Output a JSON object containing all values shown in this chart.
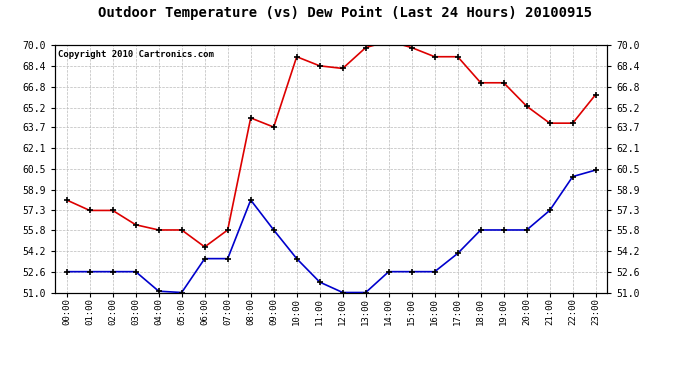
{
  "title": "Outdoor Temperature (vs) Dew Point (Last 24 Hours) 20100915",
  "copyright": "Copyright 2010 Cartronics.com",
  "x_labels": [
    "00:00",
    "01:00",
    "02:00",
    "03:00",
    "04:00",
    "05:00",
    "06:00",
    "07:00",
    "08:00",
    "09:00",
    "10:00",
    "11:00",
    "12:00",
    "13:00",
    "14:00",
    "15:00",
    "16:00",
    "17:00",
    "18:00",
    "19:00",
    "20:00",
    "21:00",
    "22:00",
    "23:00"
  ],
  "temp_red": [
    58.1,
    57.3,
    57.3,
    56.2,
    55.8,
    55.8,
    54.5,
    55.8,
    64.4,
    63.7,
    69.1,
    68.4,
    68.2,
    69.8,
    70.3,
    69.8,
    69.1,
    69.1,
    67.1,
    67.1,
    65.3,
    64.0,
    64.0,
    66.2
  ],
  "dew_blue": [
    52.6,
    52.6,
    52.6,
    52.6,
    51.1,
    51.0,
    53.6,
    53.6,
    58.1,
    55.8,
    53.6,
    51.8,
    51.0,
    51.0,
    52.6,
    52.6,
    52.6,
    54.0,
    55.8,
    55.8,
    55.8,
    57.3,
    59.9,
    60.4
  ],
  "ylim": [
    51.0,
    70.0
  ],
  "yticks": [
    51.0,
    52.6,
    54.2,
    55.8,
    57.3,
    58.9,
    60.5,
    62.1,
    63.7,
    65.2,
    66.8,
    68.4,
    70.0
  ],
  "red_color": "#dd0000",
  "blue_color": "#0000cc",
  "bg_color": "#ffffff",
  "grid_color": "#bbbbbb",
  "title_fontsize": 10,
  "copyright_fontsize": 6.5
}
